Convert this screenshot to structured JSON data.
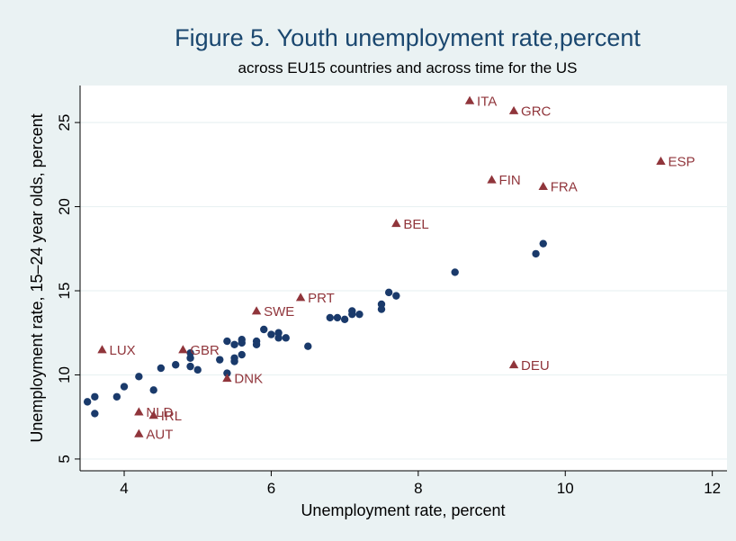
{
  "chart_data": {
    "type": "scatter",
    "title": "Figure 5.  Youth unemployment rate,percent",
    "subtitle": "across EU15 countries and across time for the US",
    "xlabel": "Unemployment rate, percent",
    "ylabel": "Unemployment rate, 15–24 year olds, percent",
    "xlim": [
      3.4,
      12.2
    ],
    "ylim": [
      4.3,
      27.2
    ],
    "xticks": [
      "4",
      "6",
      "8",
      "10",
      "12"
    ],
    "yticks": [
      "5",
      "10",
      "15",
      "20",
      "25"
    ],
    "grid": "horizontal",
    "colors": {
      "background": "#eaf2f3",
      "plot_background": "#ffffff",
      "us_series": "#1a3a6b",
      "eu_series": "#90353b",
      "grid": "#eaf2f3",
      "title": "#1a476f"
    },
    "series": [
      {
        "marker": "circle",
        "points": [
          {
            "x": 3.5,
            "y": 8.4
          },
          {
            "x": 3.6,
            "y": 8.7
          },
          {
            "x": 3.6,
            "y": 7.7
          },
          {
            "x": 3.9,
            "y": 8.7
          },
          {
            "x": 4.0,
            "y": 9.3
          },
          {
            "x": 4.2,
            "y": 9.9
          },
          {
            "x": 4.4,
            "y": 9.1
          },
          {
            "x": 4.5,
            "y": 10.4
          },
          {
            "x": 4.7,
            "y": 10.6
          },
          {
            "x": 4.9,
            "y": 11.3
          },
          {
            "x": 4.9,
            "y": 11.0
          },
          {
            "x": 4.9,
            "y": 10.5
          },
          {
            "x": 5.0,
            "y": 10.3
          },
          {
            "x": 5.3,
            "y": 10.9
          },
          {
            "x": 5.4,
            "y": 12.0
          },
          {
            "x": 5.4,
            "y": 10.1
          },
          {
            "x": 5.5,
            "y": 11.8
          },
          {
            "x": 5.5,
            "y": 11.0
          },
          {
            "x": 5.5,
            "y": 10.8
          },
          {
            "x": 5.6,
            "y": 12.1
          },
          {
            "x": 5.6,
            "y": 11.9
          },
          {
            "x": 5.6,
            "y": 11.2
          },
          {
            "x": 5.8,
            "y": 12.0
          },
          {
            "x": 5.8,
            "y": 11.8
          },
          {
            "x": 5.9,
            "y": 12.7
          },
          {
            "x": 6.0,
            "y": 12.4
          },
          {
            "x": 6.1,
            "y": 12.5
          },
          {
            "x": 6.1,
            "y": 12.2
          },
          {
            "x": 6.2,
            "y": 12.2
          },
          {
            "x": 6.5,
            "y": 11.7
          },
          {
            "x": 6.8,
            "y": 13.4
          },
          {
            "x": 6.9,
            "y": 13.4
          },
          {
            "x": 7.0,
            "y": 13.3
          },
          {
            "x": 7.1,
            "y": 13.8
          },
          {
            "x": 7.1,
            "y": 13.6
          },
          {
            "x": 7.2,
            "y": 13.6
          },
          {
            "x": 7.5,
            "y": 14.2
          },
          {
            "x": 7.5,
            "y": 13.9
          },
          {
            "x": 7.6,
            "y": 14.9
          },
          {
            "x": 7.7,
            "y": 14.7
          },
          {
            "x": 8.5,
            "y": 16.1
          },
          {
            "x": 9.6,
            "y": 17.2
          },
          {
            "x": 9.7,
            "y": 17.8
          }
        ]
      },
      {
        "marker": "triangle",
        "points": [
          {
            "x": 8.7,
            "y": 26.3,
            "label": "ITA"
          },
          {
            "x": 9.3,
            "y": 25.7,
            "label": "GRC"
          },
          {
            "x": 11.3,
            "y": 22.7,
            "label": "ESP"
          },
          {
            "x": 9.0,
            "y": 21.6,
            "label": "FIN"
          },
          {
            "x": 9.7,
            "y": 21.2,
            "label": "FRA"
          },
          {
            "x": 7.7,
            "y": 19.0,
            "label": "BEL"
          },
          {
            "x": 6.4,
            "y": 14.6,
            "label": "PRT"
          },
          {
            "x": 5.8,
            "y": 13.8,
            "label": "SWE"
          },
          {
            "x": 3.7,
            "y": 11.5,
            "label": "LUX"
          },
          {
            "x": 4.8,
            "y": 11.5,
            "label": "GBR"
          },
          {
            "x": 9.3,
            "y": 10.6,
            "label": "DEU"
          },
          {
            "x": 5.4,
            "y": 9.8,
            "label": "DNK"
          },
          {
            "x": 4.2,
            "y": 7.8,
            "label": "NLD"
          },
          {
            "x": 4.4,
            "y": 7.6,
            "label": "IRL"
          },
          {
            "x": 4.2,
            "y": 6.5,
            "label": "AUT"
          }
        ]
      }
    ]
  }
}
